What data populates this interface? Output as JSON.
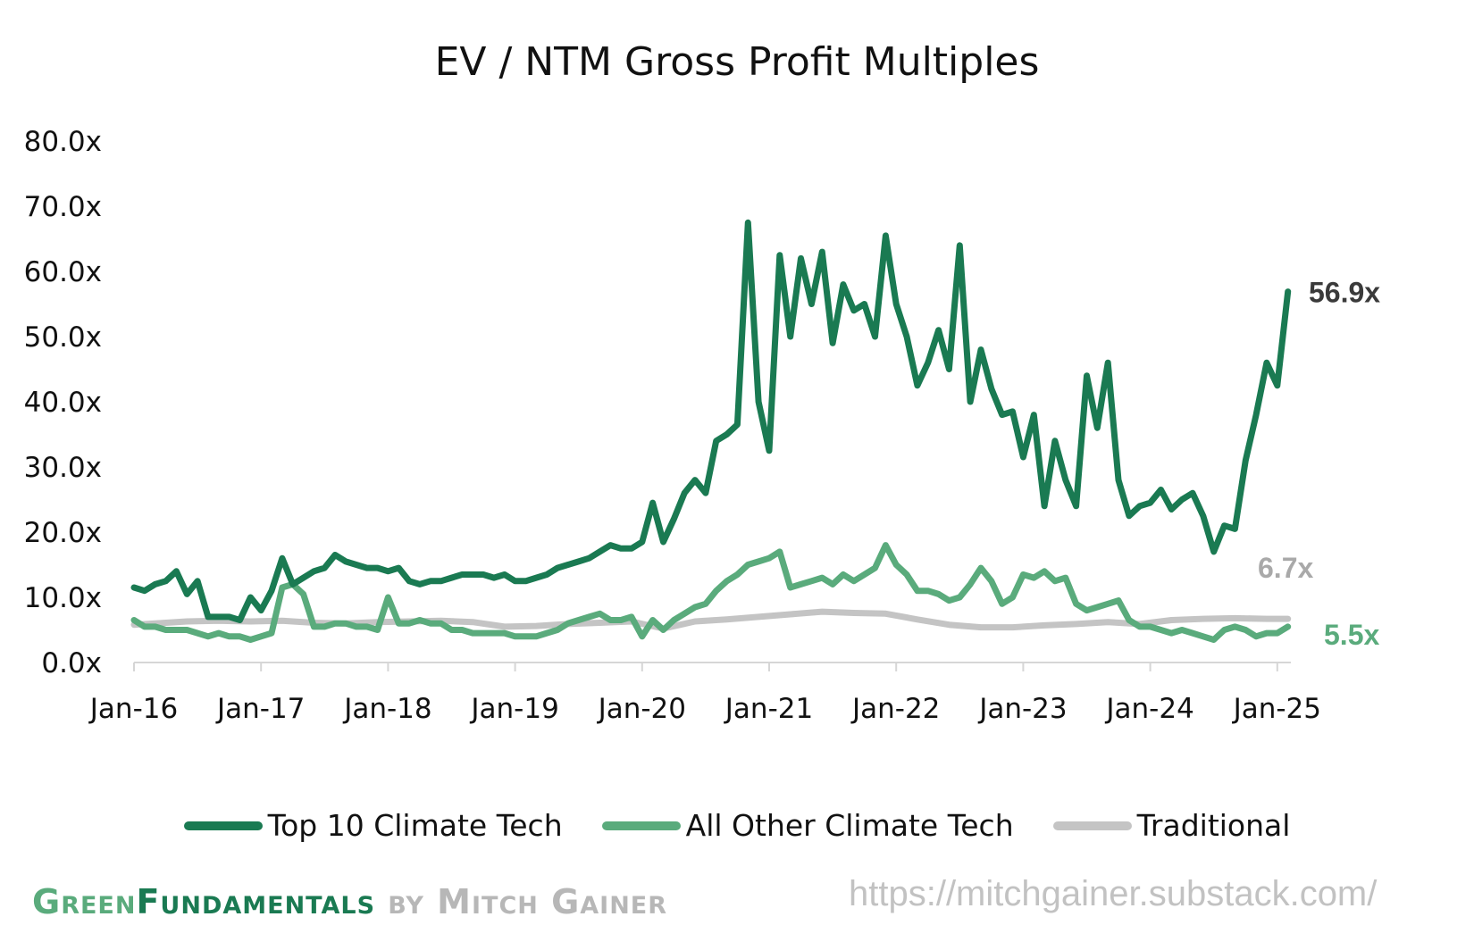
{
  "chart_data": {
    "type": "line",
    "title": "EV / NTM Gross Profit Multiples",
    "x_tick_labels": [
      "Jan-16",
      "Jan-17",
      "Jan-18",
      "Jan-19",
      "Jan-20",
      "Jan-21",
      "Jan-22",
      "Jan-23",
      "Jan-24",
      "Jan-25"
    ],
    "y_tick_labels": [
      "0.0x",
      "10.0x",
      "20.0x",
      "30.0x",
      "40.0x",
      "50.0x",
      "60.0x",
      "70.0x",
      "80.0x"
    ],
    "ylim": [
      0,
      80
    ],
    "xlim": [
      "2016-01",
      "2025-02"
    ],
    "grid": false,
    "legend_position": "bottom",
    "series": [
      {
        "name": "Top 10 Climate Tech",
        "color": "#1a7a52",
        "end_label": "56.9x",
        "end_label_color": "#3a3a3a",
        "points": [
          [
            "2016-01",
            11.5
          ],
          [
            "2016-02",
            11
          ],
          [
            "2016-03",
            12
          ],
          [
            "2016-04",
            12.5
          ],
          [
            "2016-05",
            14
          ],
          [
            "2016-06",
            10.5
          ],
          [
            "2016-07",
            12.5
          ],
          [
            "2016-08",
            7
          ],
          [
            "2016-09",
            7
          ],
          [
            "2016-10",
            7
          ],
          [
            "2016-11",
            6.5
          ],
          [
            "2016-12",
            10
          ],
          [
            "2017-01",
            8
          ],
          [
            "2017-02",
            11
          ],
          [
            "2017-03",
            16
          ],
          [
            "2017-04",
            12
          ],
          [
            "2017-05",
            13
          ],
          [
            "2017-06",
            14
          ],
          [
            "2017-07",
            14.5
          ],
          [
            "2017-08",
            16.5
          ],
          [
            "2017-09",
            15.5
          ],
          [
            "2017-10",
            15
          ],
          [
            "2017-11",
            14.5
          ],
          [
            "2017-12",
            14.5
          ],
          [
            "2018-01",
            14
          ],
          [
            "2018-02",
            14.5
          ],
          [
            "2018-03",
            12.5
          ],
          [
            "2018-04",
            12
          ],
          [
            "2018-05",
            12.5
          ],
          [
            "2018-06",
            12.5
          ],
          [
            "2018-07",
            13
          ],
          [
            "2018-08",
            13.5
          ],
          [
            "2018-09",
            13.5
          ],
          [
            "2018-10",
            13.5
          ],
          [
            "2018-11",
            13
          ],
          [
            "2018-12",
            13.5
          ],
          [
            "2019-01",
            12.5
          ],
          [
            "2019-02",
            12.5
          ],
          [
            "2019-03",
            13
          ],
          [
            "2019-04",
            13.5
          ],
          [
            "2019-05",
            14.5
          ],
          [
            "2019-06",
            15
          ],
          [
            "2019-07",
            15.5
          ],
          [
            "2019-08",
            16
          ],
          [
            "2019-09",
            17
          ],
          [
            "2019-10",
            18
          ],
          [
            "2019-11",
            17.5
          ],
          [
            "2019-12",
            17.5
          ],
          [
            "2020-01",
            18.5
          ],
          [
            "2020-02",
            24.5
          ],
          [
            "2020-03",
            18.5
          ],
          [
            "2020-04",
            22
          ],
          [
            "2020-05",
            26
          ],
          [
            "2020-06",
            28
          ],
          [
            "2020-07",
            26
          ],
          [
            "2020-08",
            34
          ],
          [
            "2020-09",
            35
          ],
          [
            "2020-10",
            36.5
          ],
          [
            "2020-11",
            67.5
          ],
          [
            "2020-12",
            40
          ],
          [
            "2021-01",
            32.5
          ],
          [
            "2021-02",
            62.5
          ],
          [
            "2021-03",
            50
          ],
          [
            "2021-04",
            62
          ],
          [
            "2021-05",
            55
          ],
          [
            "2021-06",
            63
          ],
          [
            "2021-07",
            49
          ],
          [
            "2021-08",
            58
          ],
          [
            "2021-09",
            54
          ],
          [
            "2021-10",
            55
          ],
          [
            "2021-11",
            50
          ],
          [
            "2021-12",
            65.5
          ],
          [
            "2022-01",
            55
          ],
          [
            "2022-02",
            50
          ],
          [
            "2022-03",
            42.5
          ],
          [
            "2022-04",
            46
          ],
          [
            "2022-05",
            51
          ],
          [
            "2022-06",
            45
          ],
          [
            "2022-07",
            64
          ],
          [
            "2022-08",
            40
          ],
          [
            "2022-09",
            48
          ],
          [
            "2022-10",
            42
          ],
          [
            "2022-11",
            38
          ],
          [
            "2022-12",
            38.5
          ],
          [
            "2023-01",
            31.5
          ],
          [
            "2023-02",
            38
          ],
          [
            "2023-03",
            24
          ],
          [
            "2023-04",
            34
          ],
          [
            "2023-05",
            28
          ],
          [
            "2023-06",
            24
          ],
          [
            "2023-07",
            44
          ],
          [
            "2023-08",
            36
          ],
          [
            "2023-09",
            46
          ],
          [
            "2023-10",
            28
          ],
          [
            "2023-11",
            22.5
          ],
          [
            "2023-12",
            24
          ],
          [
            "2024-01",
            24.5
          ],
          [
            "2024-02",
            26.5
          ],
          [
            "2024-03",
            23.5
          ],
          [
            "2024-04",
            25
          ],
          [
            "2024-05",
            26
          ],
          [
            "2024-06",
            22.5
          ],
          [
            "2024-07",
            17
          ],
          [
            "2024-08",
            21
          ],
          [
            "2024-09",
            20.5
          ],
          [
            "2024-10",
            31
          ],
          [
            "2024-11",
            38
          ],
          [
            "2024-12",
            46
          ],
          [
            "2025-01",
            42.5
          ],
          [
            "2025-02",
            56.9
          ]
        ]
      },
      {
        "name": "All Other Climate Tech",
        "color": "#5aab7c",
        "end_label": "5.5x",
        "end_label_color": "#5aab7c",
        "points": [
          [
            "2016-01",
            6.5
          ],
          [
            "2016-02",
            5.5
          ],
          [
            "2016-03",
            5.5
          ],
          [
            "2016-04",
            5
          ],
          [
            "2016-05",
            5
          ],
          [
            "2016-06",
            5
          ],
          [
            "2016-07",
            4.5
          ],
          [
            "2016-08",
            4
          ],
          [
            "2016-09",
            4.5
          ],
          [
            "2016-10",
            4
          ],
          [
            "2016-11",
            4
          ],
          [
            "2016-12",
            3.5
          ],
          [
            "2017-01",
            4
          ],
          [
            "2017-02",
            4.5
          ],
          [
            "2017-03",
            11.5
          ],
          [
            "2017-04",
            12
          ],
          [
            "2017-05",
            10.5
          ],
          [
            "2017-06",
            5.5
          ],
          [
            "2017-07",
            5.5
          ],
          [
            "2017-08",
            6
          ],
          [
            "2017-09",
            6
          ],
          [
            "2017-10",
            5.5
          ],
          [
            "2017-11",
            5.5
          ],
          [
            "2017-12",
            5
          ],
          [
            "2018-01",
            10
          ],
          [
            "2018-02",
            6
          ],
          [
            "2018-03",
            6
          ],
          [
            "2018-04",
            6.5
          ],
          [
            "2018-05",
            6
          ],
          [
            "2018-06",
            6
          ],
          [
            "2018-07",
            5
          ],
          [
            "2018-08",
            5
          ],
          [
            "2018-09",
            4.5
          ],
          [
            "2018-10",
            4.5
          ],
          [
            "2018-11",
            4.5
          ],
          [
            "2018-12",
            4.5
          ],
          [
            "2019-01",
            4
          ],
          [
            "2019-02",
            4
          ],
          [
            "2019-03",
            4
          ],
          [
            "2019-04",
            4.5
          ],
          [
            "2019-05",
            5
          ],
          [
            "2019-06",
            6
          ],
          [
            "2019-07",
            6.5
          ],
          [
            "2019-08",
            7
          ],
          [
            "2019-09",
            7.5
          ],
          [
            "2019-10",
            6.5
          ],
          [
            "2019-11",
            6.5
          ],
          [
            "2019-12",
            7
          ],
          [
            "2020-01",
            4
          ],
          [
            "2020-02",
            6.5
          ],
          [
            "2020-03",
            5
          ],
          [
            "2020-04",
            6.5
          ],
          [
            "2020-05",
            7.5
          ],
          [
            "2020-06",
            8.5
          ],
          [
            "2020-07",
            9
          ],
          [
            "2020-08",
            11
          ],
          [
            "2020-09",
            12.5
          ],
          [
            "2020-10",
            13.5
          ],
          [
            "2020-11",
            15
          ],
          [
            "2020-12",
            15.5
          ],
          [
            "2021-01",
            16
          ],
          [
            "2021-02",
            17
          ],
          [
            "2021-03",
            11.5
          ],
          [
            "2021-04",
            12
          ],
          [
            "2021-05",
            12.5
          ],
          [
            "2021-06",
            13
          ],
          [
            "2021-07",
            12
          ],
          [
            "2021-08",
            13.5
          ],
          [
            "2021-09",
            12.5
          ],
          [
            "2021-10",
            13.5
          ],
          [
            "2021-11",
            14.5
          ],
          [
            "2021-12",
            18
          ],
          [
            "2022-01",
            15
          ],
          [
            "2022-02",
            13.5
          ],
          [
            "2022-03",
            11
          ],
          [
            "2022-04",
            11
          ],
          [
            "2022-05",
            10.5
          ],
          [
            "2022-06",
            9.5
          ],
          [
            "2022-07",
            10
          ],
          [
            "2022-08",
            12
          ],
          [
            "2022-09",
            14.5
          ],
          [
            "2022-10",
            12.5
          ],
          [
            "2022-11",
            9
          ],
          [
            "2022-12",
            10
          ],
          [
            "2023-01",
            13.5
          ],
          [
            "2023-02",
            13
          ],
          [
            "2023-03",
            14
          ],
          [
            "2023-04",
            12.5
          ],
          [
            "2023-05",
            13
          ],
          [
            "2023-06",
            9
          ],
          [
            "2023-07",
            8
          ],
          [
            "2023-08",
            8.5
          ],
          [
            "2023-09",
            9
          ],
          [
            "2023-10",
            9.5
          ],
          [
            "2023-11",
            6.5
          ],
          [
            "2023-12",
            5.5
          ],
          [
            "2024-01",
            5.5
          ],
          [
            "2024-02",
            5
          ],
          [
            "2024-03",
            4.5
          ],
          [
            "2024-04",
            5
          ],
          [
            "2024-05",
            4.5
          ],
          [
            "2024-06",
            4
          ],
          [
            "2024-07",
            3.5
          ],
          [
            "2024-08",
            5
          ],
          [
            "2024-09",
            5.5
          ],
          [
            "2024-10",
            5
          ],
          [
            "2024-11",
            4
          ],
          [
            "2024-12",
            4.5
          ],
          [
            "2025-01",
            4.5
          ],
          [
            "2025-02",
            5.5
          ]
        ]
      },
      {
        "name": "Traditional",
        "color": "#c4c4c4",
        "end_label": "6.7x",
        "end_label_color": "#a9a9a9",
        "points": [
          [
            "2016-01",
            5.8
          ],
          [
            "2016-03",
            6
          ],
          [
            "2016-06",
            6.3
          ],
          [
            "2016-09",
            6.4
          ],
          [
            "2016-12",
            6.3
          ],
          [
            "2017-03",
            6.4
          ],
          [
            "2017-06",
            6.1
          ],
          [
            "2017-09",
            6
          ],
          [
            "2017-12",
            6.2
          ],
          [
            "2018-03",
            6.3
          ],
          [
            "2018-06",
            6.4
          ],
          [
            "2018-09",
            6.2
          ],
          [
            "2018-12",
            5.5
          ],
          [
            "2019-03",
            5.6
          ],
          [
            "2019-06",
            5.9
          ],
          [
            "2019-09",
            6.1
          ],
          [
            "2019-12",
            6.3
          ],
          [
            "2020-03",
            5.2
          ],
          [
            "2020-06",
            6.3
          ],
          [
            "2020-09",
            6.6
          ],
          [
            "2020-12",
            7
          ],
          [
            "2021-03",
            7.4
          ],
          [
            "2021-06",
            7.8
          ],
          [
            "2021-09",
            7.6
          ],
          [
            "2021-12",
            7.5
          ],
          [
            "2022-03",
            6.6
          ],
          [
            "2022-06",
            5.8
          ],
          [
            "2022-09",
            5.4
          ],
          [
            "2022-12",
            5.4
          ],
          [
            "2023-03",
            5.7
          ],
          [
            "2023-06",
            5.9
          ],
          [
            "2023-09",
            6.2
          ],
          [
            "2023-12",
            5.9
          ],
          [
            "2024-03",
            6.5
          ],
          [
            "2024-06",
            6.7
          ],
          [
            "2024-09",
            6.8
          ],
          [
            "2024-12",
            6.7
          ],
          [
            "2025-02",
            6.7
          ]
        ]
      }
    ]
  },
  "footer": {
    "brand_part1": "Green",
    "brand_part2": "Fundamentals",
    "brand_part3": " by Mitch Gainer",
    "url": "https://mitchgainer.substack.com/"
  }
}
